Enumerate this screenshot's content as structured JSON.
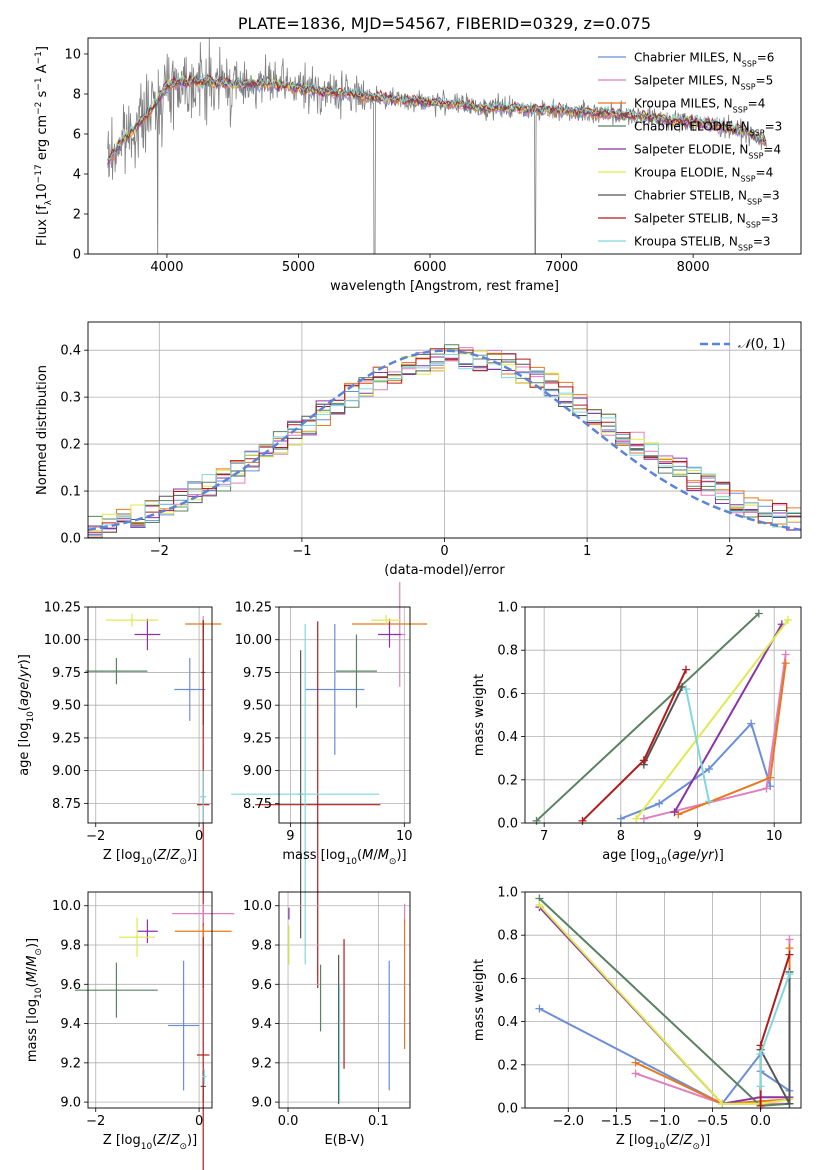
{
  "figure_title": "PLATE=1836, MJD=54567, FIBERID=0329, z=0.075",
  "series": [
    {
      "name": "Chabrier MILES",
      "color": "#6a8fd6",
      "nssp": "6"
    },
    {
      "name": "Salpeter MILES",
      "color": "#e17fbe",
      "nssp": "5"
    },
    {
      "name": "Kroupa MILES",
      "color": "#e8771e",
      "nssp": "4"
    },
    {
      "name": "Chabrier ELODIE",
      "color": "#5a8260",
      "nssp": "3"
    },
    {
      "name": "Salpeter ELODIE",
      "color": "#8a33a8",
      "nssp": "4"
    },
    {
      "name": "Kroupa ELODIE",
      "color": "#dfe950",
      "nssp": "4"
    },
    {
      "name": "Chabrier STELIB",
      "color": "#555555",
      "nssp": "3"
    },
    {
      "name": "Salpeter STELIB",
      "color": "#b31b1b",
      "nssp": "3"
    },
    {
      "name": "Kroupa STELIB",
      "color": "#7fd8dc",
      "nssp": "3"
    }
  ],
  "chart_data": [
    {
      "id": "spectrum",
      "type": "line",
      "xlabel": "wavelength [Angstrom, rest frame]",
      "ylabel": "Flux [f_λ 10^-17 erg cm^-2 s^-1 A^-1]",
      "xlim": [
        3400,
        8820
      ],
      "ylim": [
        0,
        10.8
      ],
      "xticks": [
        4000,
        5000,
        6000,
        7000,
        8000
      ],
      "yticks": [
        0,
        2,
        4,
        6,
        8,
        10
      ],
      "data_color": "#808080",
      "continuum": {
        "x": [
          3550,
          3650,
          3800,
          3900,
          4000,
          4100,
          4300,
          4500,
          4800,
          5000,
          5200,
          5400,
          5600,
          5800,
          6000,
          6200,
          6400,
          6600,
          6800,
          7000,
          7200,
          7400,
          7600,
          7800,
          8000,
          8200,
          8400,
          8560
        ],
        "y": [
          4.6,
          5.6,
          6.6,
          7.4,
          8.4,
          8.6,
          8.6,
          8.5,
          8.5,
          8.3,
          8.1,
          8.0,
          7.8,
          7.7,
          7.6,
          7.5,
          7.3,
          7.3,
          7.2,
          7.2,
          7.1,
          7.0,
          6.9,
          6.7,
          6.6,
          6.4,
          6.1,
          5.6
        ]
      }
    },
    {
      "id": "residual-histogram",
      "type": "line",
      "xlabel": "(data-model)/error",
      "ylabel": "Normed distribution",
      "xlim": [
        -2.5,
        2.5
      ],
      "ylim": [
        0,
        0.46
      ],
      "xticks": [
        -2,
        -1,
        0,
        1,
        2
      ],
      "yticks": [
        0.0,
        0.1,
        0.2,
        0.3,
        0.4
      ],
      "legend": "$\\mathcal{N}(0,1)$",
      "normal_color": "#5b84d6"
    },
    {
      "id": "age-vs-Z",
      "type": "scatter",
      "xlabel": "Z [log10(Z/Z⊙)]",
      "ylabel": "age  [log10(age/yr)]",
      "xlim": [
        -2.15,
        0.25
      ],
      "ylim": [
        8.6,
        10.25
      ],
      "xticks": [
        -2,
        0
      ],
      "yticks": [
        8.75,
        9.0,
        9.25,
        9.5,
        9.75,
        10.0,
        10.25
      ],
      "points": [
        {
          "s": 0,
          "x": -0.18,
          "y": 9.62,
          "xe": 0.3,
          "ye": 0.24
        },
        {
          "s": 1,
          "x": 0.08,
          "y": 10.12,
          "xe": 0.05,
          "ye": 0.06
        },
        {
          "s": 2,
          "x": 0.08,
          "y": 10.12,
          "xe": 0.35,
          "ye": 0.03
        },
        {
          "s": 3,
          "x": -1.6,
          "y": 9.76,
          "xe": 0.6,
          "ye": 0.1
        },
        {
          "s": 4,
          "x": -1.0,
          "y": 10.04,
          "xe": 0.25,
          "ye": 0.12
        },
        {
          "s": 5,
          "x": -1.3,
          "y": 10.15,
          "xe": 0.5,
          "ye": 0.05
        },
        {
          "s": 6,
          "x": 0.08,
          "y": 9.75,
          "xe": 0.04,
          "ye": 0.4
        },
        {
          "s": 7,
          "x": 0.08,
          "y": 8.74,
          "xe": 0.12,
          "ye": 1.4
        },
        {
          "s": 8,
          "x": 0.08,
          "y": 8.8,
          "xe": 0.06,
          "ye": 0.2
        }
      ]
    },
    {
      "id": "age-vs-mass",
      "type": "scatter",
      "xlabel": "mass [log10(M/M⊙)]",
      "ylabel": "",
      "xlim": [
        8.9,
        10.05
      ],
      "ylim": [
        8.6,
        10.25
      ],
      "xticks": [
        9,
        10
      ],
      "yticks": [
        8.75,
        9.0,
        9.25,
        9.5,
        9.75,
        10.0,
        10.25
      ],
      "points": [
        {
          "s": 0,
          "x": 9.39,
          "y": 9.62,
          "xe": 0.26,
          "ye": 0.5
        },
        {
          "s": 1,
          "x": 9.96,
          "y": 10.04,
          "xe": 0.05,
          "ye": 0.4
        },
        {
          "s": 2,
          "x": 9.87,
          "y": 10.12,
          "xe": 0.33,
          "ye": 0.04
        },
        {
          "s": 3,
          "x": 9.58,
          "y": 9.76,
          "xe": 0.18,
          "ye": 0.28
        },
        {
          "s": 4,
          "x": 9.87,
          "y": 10.04,
          "xe": 0.1,
          "ye": 0.1
        },
        {
          "s": 5,
          "x": 9.84,
          "y": 10.15,
          "xe": 0.13,
          "ye": 0.04
        },
        {
          "s": 6,
          "x": 9.09,
          "y": 8.82,
          "xe": 0.02,
          "ye": 1.1
        },
        {
          "s": 7,
          "x": 9.24,
          "y": 8.74,
          "xe": 0.55,
          "ye": 1.4
        },
        {
          "s": 8,
          "x": 9.13,
          "y": 8.82,
          "xe": 0.65,
          "ye": 1.3
        }
      ]
    },
    {
      "id": "mass-weight-vs-age",
      "type": "line",
      "xlabel": "age  [log10(age/yr)]",
      "ylabel": "mass weight",
      "xlim": [
        6.75,
        10.35
      ],
      "ylim": [
        0,
        1.0
      ],
      "xticks": [
        7,
        8,
        9,
        10
      ],
      "yticks": [
        0.0,
        0.2,
        0.4,
        0.6,
        0.8,
        1.0
      ],
      "lines": [
        {
          "s": 0,
          "x": [
            8.0,
            8.5,
            9.15,
            9.7,
            9.95
          ],
          "y": [
            0.02,
            0.09,
            0.25,
            0.46,
            0.17
          ]
        },
        {
          "s": 1,
          "x": [
            8.3,
            9.9,
            10.15
          ],
          "y": [
            0.02,
            0.16,
            0.78
          ]
        },
        {
          "s": 2,
          "x": [
            8.75,
            9.95,
            10.15
          ],
          "y": [
            0.04,
            0.21,
            0.74
          ]
        },
        {
          "s": 3,
          "x": [
            6.9,
            9.8
          ],
          "y": [
            0.01,
            0.97
          ]
        },
        {
          "s": 4,
          "x": [
            8.7,
            10.1
          ],
          "y": [
            0.05,
            0.92
          ]
        },
        {
          "s": 5,
          "x": [
            8.2,
            10.18
          ],
          "y": [
            0.02,
            0.94
          ]
        },
        {
          "s": 6,
          "x": [
            8.3,
            8.8
          ],
          "y": [
            0.27,
            0.63
          ]
        },
        {
          "s": 7,
          "x": [
            7.5,
            8.3,
            8.85
          ],
          "y": [
            0.01,
            0.29,
            0.71
          ]
        },
        {
          "s": 8,
          "x": [
            8.85,
            9.15
          ],
          "y": [
            0.62,
            0.1
          ]
        }
      ]
    },
    {
      "id": "mass-vs-Z",
      "type": "scatter",
      "xlabel": "Z [log10(Z/Z⊙)]",
      "ylabel": "mass [log10(M/M⊙)]",
      "xlim": [
        -2.15,
        0.25
      ],
      "ylim": [
        8.97,
        10.07
      ],
      "xticks": [
        -2,
        0
      ],
      "yticks": [
        9.0,
        9.2,
        9.4,
        9.6,
        9.8,
        10.0
      ],
      "points": [
        {
          "s": 0,
          "x": -0.3,
          "y": 9.39,
          "xe": 0.3,
          "ye": 0.33
        },
        {
          "s": 1,
          "x": 0.08,
          "y": 9.96,
          "xe": 0.6,
          "ye": 0.05
        },
        {
          "s": 2,
          "x": 0.08,
          "y": 9.87,
          "xe": 0.55,
          "ye": 0.03
        },
        {
          "s": 3,
          "x": -1.6,
          "y": 9.57,
          "xe": 0.8,
          "ye": 0.14
        },
        {
          "s": 4,
          "x": -1.0,
          "y": 9.87,
          "xe": 0.2,
          "ye": 0.06
        },
        {
          "s": 5,
          "x": -1.2,
          "y": 9.84,
          "xe": 0.35,
          "ye": 0.1
        },
        {
          "s": 6,
          "x": 0.08,
          "y": 9.08,
          "xe": 0.05,
          "ye": 0.08
        },
        {
          "s": 7,
          "x": 0.08,
          "y": 9.24,
          "xe": 0.12,
          "ye": 0.6
        },
        {
          "s": 8,
          "x": 0.1,
          "y": 9.13,
          "xe": 0.04,
          "ye": 0.04
        }
      ]
    },
    {
      "id": "mass-vs-EBV",
      "type": "scatter",
      "xlabel": "E(B-V)",
      "ylabel": "",
      "xlim": [
        -0.01,
        0.135
      ],
      "ylim": [
        8.97,
        10.07
      ],
      "xticks": [
        0.0,
        0.1
      ],
      "yticks": [
        9.0,
        9.2,
        9.4,
        9.6,
        9.8,
        10.0
      ],
      "points": [
        {
          "s": 0,
          "x": 0.112,
          "y": 9.39,
          "xe": 0,
          "ye": 0.33
        },
        {
          "s": 1,
          "x": 0.129,
          "y": 9.96,
          "xe": 0,
          "ye": 0.05
        },
        {
          "s": 2,
          "x": 0.129,
          "y": 9.6,
          "xe": 0,
          "ye": 0.33
        },
        {
          "s": 3,
          "x": 0.036,
          "y": 9.53,
          "xe": 0,
          "ye": 0.17
        },
        {
          "s": 4,
          "x": 0.001,
          "y": 9.96,
          "xe": 0,
          "ye": 0.03
        },
        {
          "s": 5,
          "x": 0.001,
          "y": 9.8,
          "xe": 0,
          "ye": 0.1
        },
        {
          "s": 6,
          "x": 0.056,
          "y": 9.37,
          "xe": 0,
          "ye": 0.38
        },
        {
          "s": 7,
          "x": 0.062,
          "y": 9.5,
          "xe": 0,
          "ye": 0.33
        },
        {
          "s": 8,
          "x": 0.057,
          "y": 9.3,
          "xe": 0,
          "ye": 0.3
        }
      ]
    },
    {
      "id": "mass-weight-vs-Z",
      "type": "line",
      "xlabel": "Z [log10(Z/Z⊙)]",
      "ylabel": "mass weight",
      "xlim": [
        -2.45,
        0.42
      ],
      "ylim": [
        0,
        1.0
      ],
      "xticks": [
        -2.0,
        -1.5,
        -1.0,
        -0.5,
        0.0
      ],
      "yticks": [
        0.0,
        0.2,
        0.4,
        0.6,
        0.8,
        1.0
      ],
      "lines": [
        {
          "s": 0,
          "x": [
            -2.3,
            -0.4,
            0.0,
            0.0,
            0.3
          ],
          "y": [
            0.46,
            0.02,
            0.25,
            0.17,
            0.08
          ]
        },
        {
          "s": 1,
          "x": [
            -1.3,
            -0.4,
            0.3,
            0.3
          ],
          "y": [
            0.16,
            0.02,
            0.02,
            0.78
          ]
        },
        {
          "s": 2,
          "x": [
            -1.3,
            -0.4,
            0.3,
            0.3
          ],
          "y": [
            0.21,
            0.02,
            0.04,
            0.74
          ]
        },
        {
          "s": 3,
          "x": [
            -2.3,
            0.0,
            0.3
          ],
          "y": [
            0.97,
            0.01,
            0.02
          ]
        },
        {
          "s": 4,
          "x": [
            -2.3,
            -0.4,
            0.0,
            0.3
          ],
          "y": [
            0.93,
            0.02,
            0.05,
            0.05
          ]
        },
        {
          "s": 5,
          "x": [
            -2.3,
            -0.4,
            0.0,
            0.3
          ],
          "y": [
            0.94,
            0.02,
            0.02,
            0.04
          ]
        },
        {
          "s": 6,
          "x": [
            0.0,
            0.3,
            0.3
          ],
          "y": [
            0.27,
            0.02,
            0.63
          ]
        },
        {
          "s": 7,
          "x": [
            0.0,
            0.0,
            0.3
          ],
          "y": [
            0.01,
            0.29,
            0.71
          ]
        },
        {
          "s": 8,
          "x": [
            0.0,
            0.0,
            0.3
          ],
          "y": [
            0.1,
            0.25,
            0.62
          ]
        }
      ]
    }
  ]
}
